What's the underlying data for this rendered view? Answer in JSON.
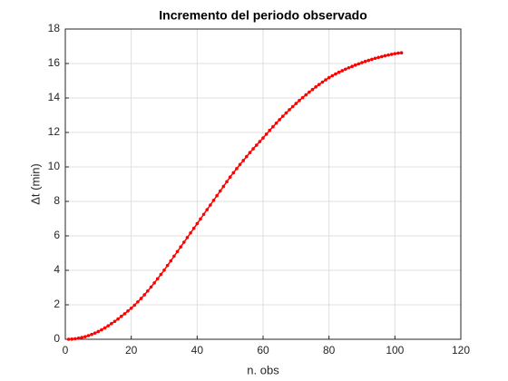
{
  "chart_data": {
    "type": "line",
    "title": "Incremento del periodo observado",
    "xlabel": "n. obs",
    "ylabel": "Δt (min)",
    "x": [
      1,
      2,
      3,
      4,
      5,
      6,
      7,
      8,
      9,
      10,
      11,
      12,
      13,
      14,
      15,
      16,
      17,
      18,
      19,
      20,
      21,
      22,
      23,
      24,
      25,
      26,
      27,
      28,
      29,
      30,
      31,
      32,
      33,
      34,
      35,
      36,
      37,
      38,
      39,
      40,
      41,
      42,
      43,
      44,
      45,
      46,
      47,
      48,
      49,
      50,
      51,
      52,
      53,
      54,
      55,
      56,
      57,
      58,
      59,
      60,
      61,
      62,
      63,
      64,
      65,
      66,
      67,
      68,
      69,
      70,
      71,
      72,
      73,
      74,
      75,
      76,
      77,
      78,
      79,
      80,
      81,
      82,
      83,
      84,
      85,
      86,
      87,
      88,
      89,
      90,
      91,
      92,
      93,
      94,
      95,
      96,
      97,
      98,
      99,
      100,
      101,
      102
    ],
    "series": [
      {
        "color": "#ff0000",
        "values": [
          0.0,
          0.01,
          0.03,
          0.06,
          0.1,
          0.15,
          0.21,
          0.28,
          0.36,
          0.45,
          0.55,
          0.66,
          0.78,
          0.91,
          1.04,
          1.18,
          1.33,
          1.48,
          1.64,
          1.8,
          1.98,
          2.17,
          2.37,
          2.58,
          2.8,
          3.03,
          3.27,
          3.51,
          3.76,
          4.01,
          4.28,
          4.55,
          4.82,
          5.09,
          5.36,
          5.63,
          5.9,
          6.17,
          6.44,
          6.71,
          6.98,
          7.25,
          7.52,
          7.79,
          8.06,
          8.33,
          8.6,
          8.87,
          9.14,
          9.41,
          9.66,
          9.9,
          10.14,
          10.37,
          10.6,
          10.83,
          11.05,
          11.26,
          11.47,
          11.68,
          11.9,
          12.12,
          12.33,
          12.54,
          12.74,
          12.94,
          13.13,
          13.32,
          13.5,
          13.68,
          13.85,
          14.02,
          14.18,
          14.34,
          14.49,
          14.64,
          14.78,
          14.92,
          15.05,
          15.18,
          15.29,
          15.39,
          15.49,
          15.58,
          15.67,
          15.75,
          15.83,
          15.91,
          15.98,
          16.05,
          16.12,
          16.18,
          16.24,
          16.3,
          16.35,
          16.4,
          16.45,
          16.49,
          16.53,
          16.57,
          16.6,
          16.62
        ]
      }
    ],
    "xlim": [
      0,
      120
    ],
    "xticks": [
      0,
      20,
      40,
      60,
      80,
      100,
      120
    ],
    "ylim": [
      0,
      18
    ],
    "yticks": [
      0,
      2,
      4,
      6,
      8,
      10,
      12,
      14,
      16,
      18
    ],
    "grid": true
  }
}
